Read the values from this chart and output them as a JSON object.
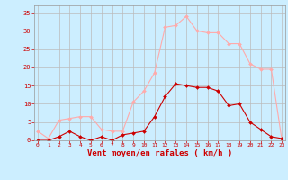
{
  "hours": [
    0,
    1,
    2,
    3,
    4,
    5,
    6,
    7,
    8,
    9,
    10,
    11,
    12,
    13,
    14,
    15,
    16,
    17,
    18,
    19,
    20,
    21,
    22,
    23
  ],
  "wind_avg": [
    0,
    0,
    1,
    2.5,
    1,
    0,
    1,
    0,
    1.5,
    2,
    2.5,
    6.5,
    12,
    15.5,
    15,
    14.5,
    14.5,
    13.5,
    9.5,
    10,
    5,
    3,
    1,
    0.5
  ],
  "wind_gust": [
    2.5,
    0.5,
    5.5,
    6,
    6.5,
    6.5,
    3,
    2.5,
    2.5,
    10.5,
    13.5,
    18.5,
    31,
    31.5,
    34,
    30,
    29.5,
    29.5,
    26.5,
    26.5,
    21,
    19.5,
    19.5,
    0
  ],
  "bg_color": "#cceeff",
  "grid_color": "#bbbbbb",
  "avg_color": "#cc0000",
  "gust_color": "#ffaaaa",
  "xlabel": "Vent moyen/en rafales ( km/h )",
  "xlabel_color": "#cc0000",
  "tick_color": "#cc0000",
  "ylim": [
    0,
    37
  ],
  "yticks": [
    0,
    5,
    10,
    15,
    20,
    25,
    30,
    35
  ],
  "marker": "D",
  "marker_size": 2.0
}
